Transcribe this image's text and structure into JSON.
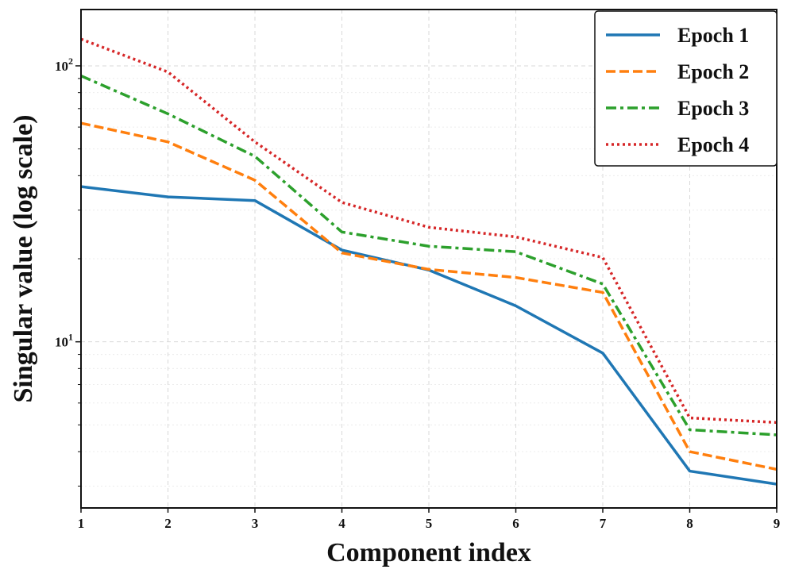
{
  "chart_data": {
    "type": "line",
    "title": "",
    "xlabel": "Component index",
    "ylabel": "Singular value (log scale)",
    "yscale": "log",
    "x": [
      1,
      2,
      3,
      4,
      5,
      6,
      7,
      8,
      9
    ],
    "xlim": [
      1,
      9
    ],
    "ylim": [
      2.5,
      160
    ],
    "xticks": [
      "1",
      "2",
      "3",
      "4",
      "5",
      "6",
      "7",
      "8",
      "9"
    ],
    "yticks": [
      {
        "value": 10,
        "base": "10",
        "exp": "1"
      },
      {
        "value": 100,
        "base": "10",
        "exp": "2"
      }
    ],
    "grid": true,
    "legend_position": "top-right",
    "series": [
      {
        "name": "Epoch 1",
        "color": "#1f77b4",
        "dash": "solid",
        "values": [
          36.5,
          33.5,
          32.5,
          21.5,
          18.2,
          13.5,
          9.1,
          3.4,
          3.05
        ]
      },
      {
        "name": "Epoch 2",
        "color": "#ff7f0e",
        "dash": "dashed",
        "values": [
          62,
          53,
          38.5,
          21,
          18.3,
          17.1,
          15.1,
          4.0,
          3.45
        ]
      },
      {
        "name": "Epoch 3",
        "color": "#2ca02c",
        "dash": "dashdot",
        "values": [
          92,
          67,
          47,
          25,
          22.2,
          21.2,
          16.2,
          4.8,
          4.6
        ]
      },
      {
        "name": "Epoch 4",
        "color": "#d62728",
        "dash": "dotted",
        "values": [
          125,
          95,
          53,
          32,
          26,
          24,
          20.2,
          5.3,
          5.1
        ]
      }
    ]
  }
}
